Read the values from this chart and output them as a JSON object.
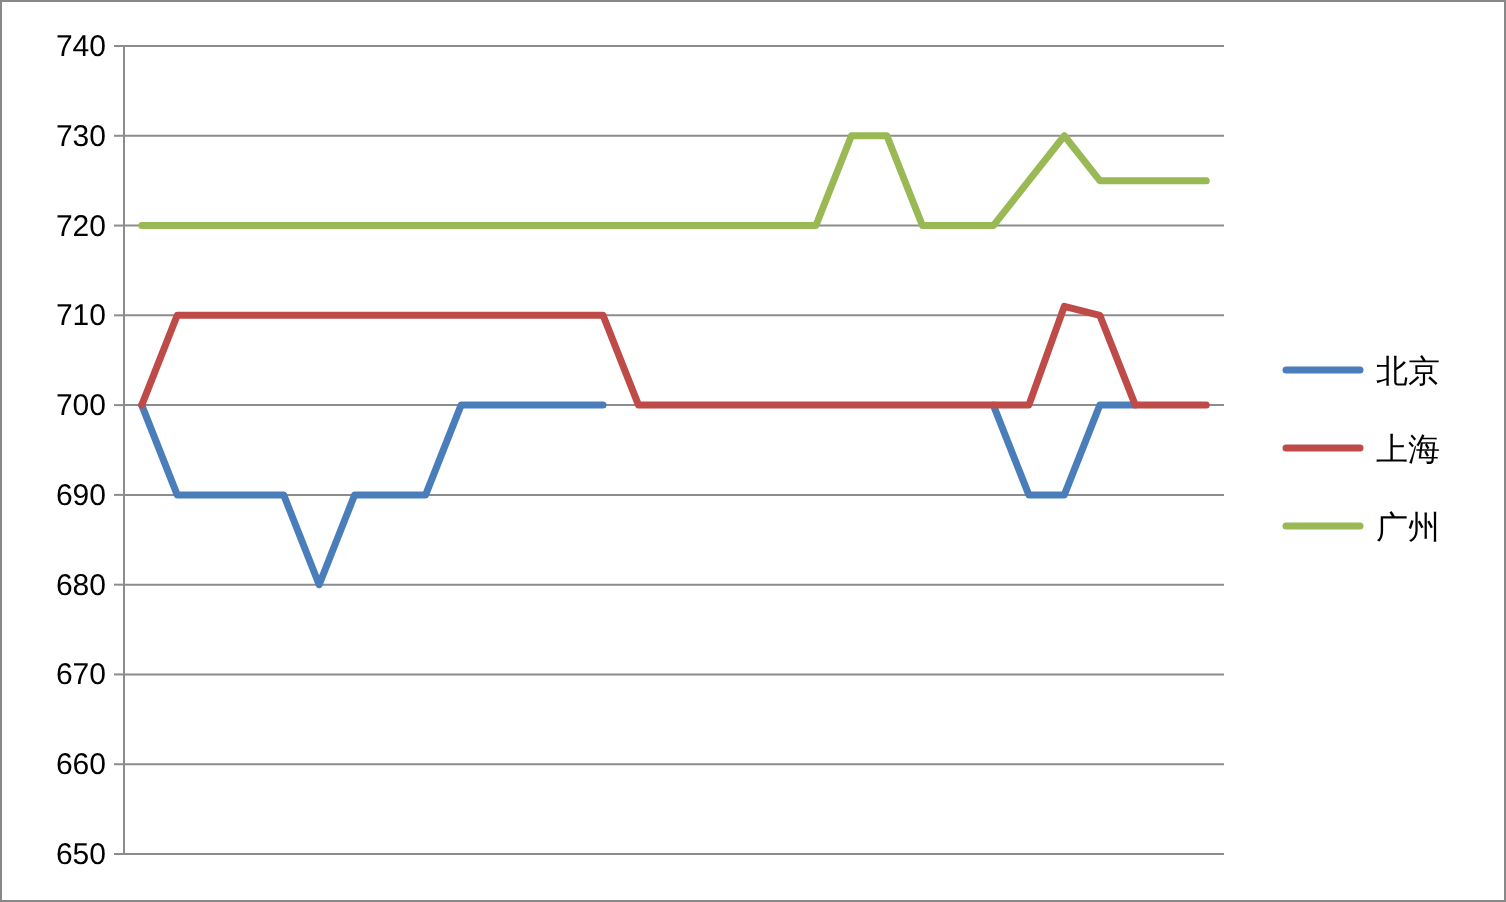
{
  "chart_data": {
    "type": "line",
    "categories": [
      null,
      null,
      null,
      null,
      null,
      null,
      null,
      null,
      null,
      null,
      null,
      null,
      null,
      null,
      null,
      null,
      null,
      null,
      null,
      null,
      null,
      null,
      null,
      null,
      null,
      null,
      null,
      null,
      null,
      null,
      null
    ],
    "series": [
      {
        "name": "北京",
        "color": "#4a7ebb",
        "values": [
          700,
          690,
          690,
          690,
          690,
          680,
          690,
          690,
          690,
          700,
          700,
          700,
          700,
          700,
          null,
          null,
          null,
          null,
          null,
          null,
          null,
          null,
          null,
          null,
          700,
          690,
          690,
          700,
          700,
          null,
          null
        ]
      },
      {
        "name": "上海",
        "color": "#be4b48",
        "values": [
          700,
          710,
          710,
          710,
          710,
          710,
          710,
          710,
          710,
          710,
          710,
          710,
          710,
          710,
          700,
          700,
          700,
          700,
          700,
          700,
          700,
          700,
          700,
          700,
          700,
          700,
          711,
          710,
          700,
          700,
          700
        ]
      },
      {
        "name": "广州",
        "color": "#98b954",
        "values": [
          720,
          720,
          720,
          720,
          720,
          720,
          720,
          720,
          720,
          720,
          720,
          720,
          720,
          720,
          720,
          720,
          720,
          720,
          720,
          720,
          730,
          730,
          720,
          720,
          720,
          725,
          730,
          725,
          725,
          725,
          725
        ]
      }
    ],
    "ylim": [
      650,
      740
    ],
    "yticks": [
      650,
      660,
      670,
      680,
      690,
      700,
      710,
      720,
      730,
      740
    ],
    "grid": "y",
    "legend": "right",
    "marker": "none",
    "line_style": "solid"
  }
}
